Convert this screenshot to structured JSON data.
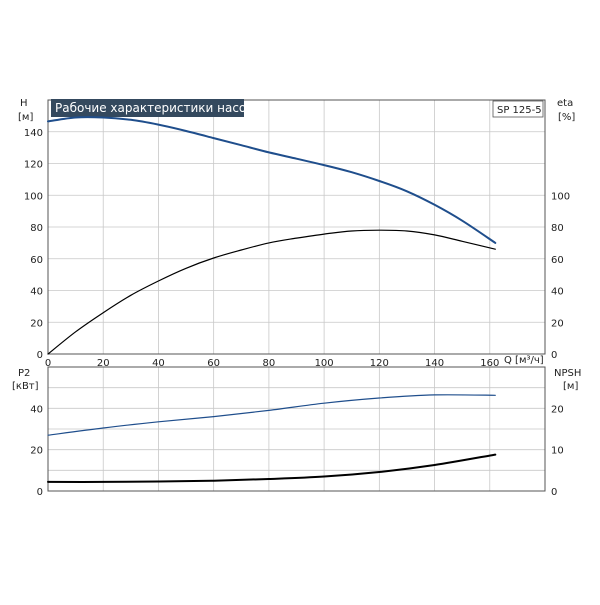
{
  "title": "Рабочие характеристики насоса",
  "model": "SP 125-5",
  "colors": {
    "blue": "#1f4e8c",
    "black": "#000000",
    "grid": "#c8c8c8",
    "titlebg": "#34495e"
  },
  "top_axes": {
    "left_label_line1": "H",
    "left_label_line2": "[м]",
    "right_label_line1": "eta",
    "right_label_line2": "[%]",
    "x_label": "Q [м³/ч]"
  },
  "bottom_axes": {
    "left_label_line1": "P2",
    "left_label_line2": "[кВт]",
    "right_label_line1": "NPSH",
    "right_label_line2": "[м]"
  },
  "chart_data": [
    {
      "type": "line",
      "panel": "top",
      "xlim": [
        0,
        180
      ],
      "ylim": [
        0,
        160
      ],
      "y2lim": [
        0,
        160
      ],
      "x_ticks": [
        0,
        20,
        40,
        60,
        80,
        100,
        120,
        140,
        160
      ],
      "y_ticks": [
        0,
        20,
        40,
        60,
        80,
        100,
        120,
        140
      ],
      "y2_ticks": [
        0,
        20,
        40,
        60,
        80,
        100
      ],
      "grid": true,
      "series": [
        {
          "axis": "y",
          "color": "#1f4e8c",
          "x": [
            0,
            10,
            20,
            30,
            40,
            50,
            60,
            70,
            80,
            90,
            100,
            110,
            120,
            130,
            140,
            150,
            162
          ],
          "y": [
            146.5,
            149,
            149,
            147.5,
            144.5,
            140.5,
            136,
            131.5,
            127,
            123,
            119,
            114.5,
            109,
            102.5,
            94,
            84,
            70
          ]
        },
        {
          "axis": "y2",
          "color": "#000000",
          "x": [
            0,
            10,
            20,
            30,
            40,
            50,
            60,
            70,
            80,
            90,
            100,
            110,
            120,
            130,
            140,
            150,
            162
          ],
          "y": [
            0,
            14,
            26,
            37,
            46,
            54,
            60.5,
            65.5,
            70,
            73,
            75.5,
            77.5,
            78,
            77.5,
            75,
            71,
            66
          ]
        }
      ]
    },
    {
      "type": "line",
      "panel": "bottom",
      "xlim": [
        0,
        180
      ],
      "ylim": [
        0,
        60
      ],
      "y2lim": [
        0,
        30
      ],
      "y_ticks": [
        0,
        20,
        40
      ],
      "y2_ticks": [
        0,
        10,
        20
      ],
      "grid": true,
      "series": [
        {
          "axis": "y",
          "color": "#1f4e8c",
          "x": [
            0,
            20,
            40,
            60,
            80,
            100,
            120,
            140,
            162
          ],
          "y": [
            27,
            30.5,
            33.5,
            36,
            39,
            42.5,
            45,
            46.5,
            46.3
          ]
        },
        {
          "axis": "y2",
          "color": "#000000",
          "x": [
            0,
            20,
            40,
            60,
            80,
            100,
            120,
            140,
            162
          ],
          "y": [
            2.2,
            2.2,
            2.3,
            2.5,
            2.9,
            3.5,
            4.6,
            6.3,
            8.8
          ]
        }
      ]
    }
  ]
}
